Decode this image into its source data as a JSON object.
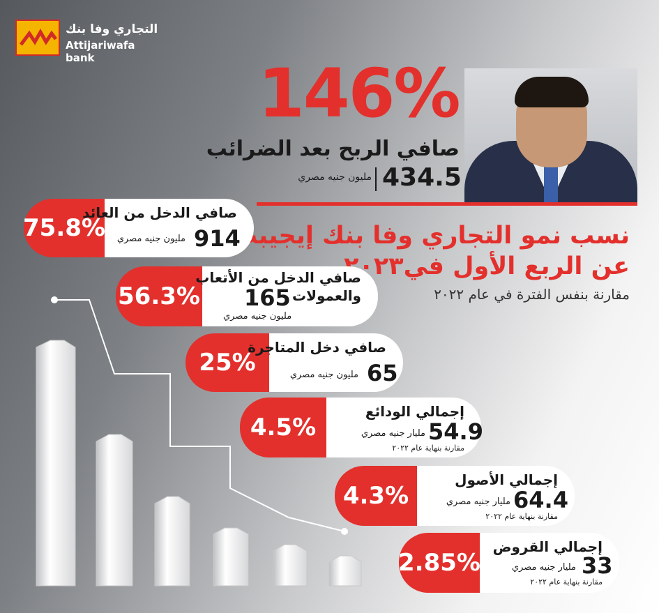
{
  "logo": {
    "ar": "التجاري وفا بنك",
    "en": "Attijariwafa bank"
  },
  "headline": {
    "growth_pct": "146%",
    "label": "صافي الربح بعد الضرائب",
    "value": "434.5",
    "unit": "مليون جنيه مصري"
  },
  "title": {
    "line1": "نسب نمو التجاري وفا بنك إيجيبت",
    "line2": "عن الربع الأول في٢٠٢٣",
    "sub": "مقارنة بنفس الفترة في عام ٢٠٢٢"
  },
  "cards": [
    {
      "pct": "75.8%",
      "label": "صافي الدخل من العائد",
      "value": "914",
      "unit": "مليون جنيه مصري",
      "note": ""
    },
    {
      "pct": "56.3%",
      "label": "صافي الدخل من الأتعاب",
      "label2": "والعمولات",
      "value": "165",
      "unit": "مليون جنيه مصري",
      "note": ""
    },
    {
      "pct": "25%",
      "label": "صافي دخل المتاجرة",
      "value": "65",
      "unit": "مليون جنيه مصري",
      "note": ""
    },
    {
      "pct": "4.5%",
      "label": "إجمالي الودائع",
      "value": "54.9",
      "unit": "مليار جنيه مصري",
      "note": "مقارنة بنهاية عام ٢٠٢٢"
    },
    {
      "pct": "4.3%",
      "label": "إجمالي الأصول",
      "value": "64.4",
      "unit": "مليار جنيه مصري",
      "note": "مقارنة بنهاية عام ٢٠٢٢"
    },
    {
      "pct": "2.85%",
      "label": "إجمالي القروض",
      "value": "33",
      "unit": "مليار جنيه مصري",
      "note": "مقارنة بنهاية عام ٢٠٢٢"
    }
  ],
  "colors": {
    "accent": "#e3302c",
    "logo_yellow": "#f5b400"
  }
}
